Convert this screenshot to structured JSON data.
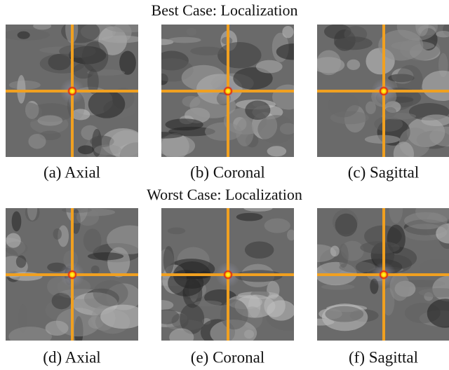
{
  "rows": [
    {
      "title": "Best Case: Localization",
      "panels": [
        {
          "caption": "(a) Axial"
        },
        {
          "caption": "(b) Coronal"
        },
        {
          "caption": "(c) Sagittal"
        }
      ]
    },
    {
      "title": "Worst Case: Localization",
      "panels": [
        {
          "caption": "(d) Axial"
        },
        {
          "caption": "(e) Coronal"
        },
        {
          "caption": "(f) Sagittal"
        }
      ]
    }
  ]
}
